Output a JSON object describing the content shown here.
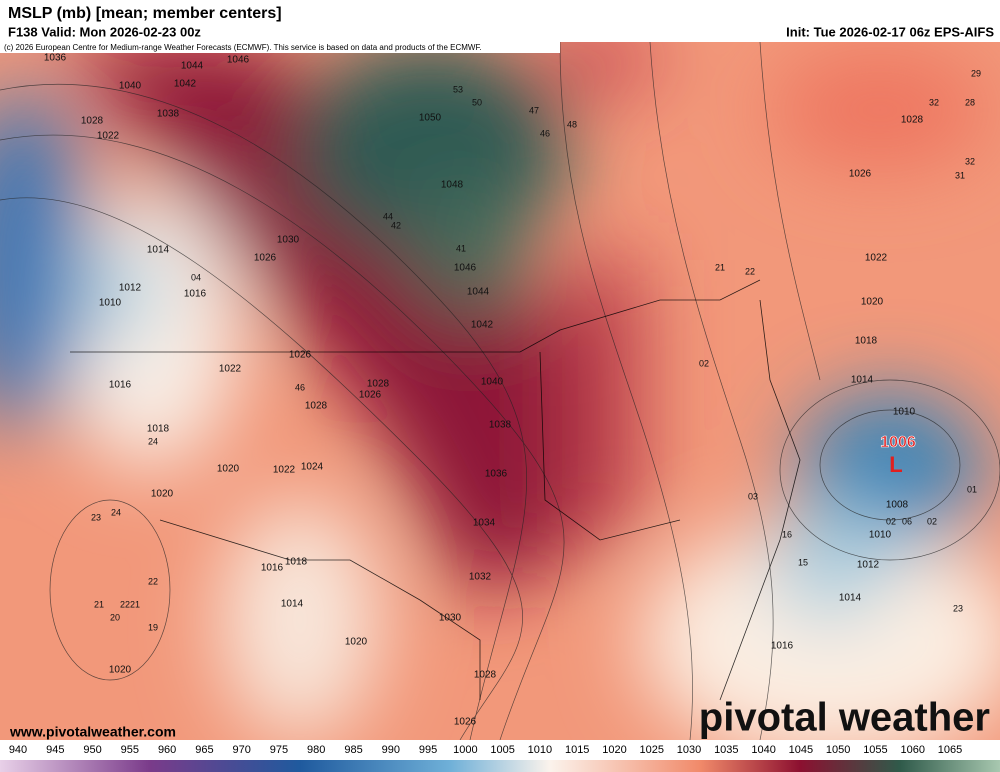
{
  "header": {
    "title": "MSLP (mb) [mean; member centers]",
    "valid": "F138 Valid: Mon 2026-02-23 00z",
    "init": "Init: Tue 2026-02-17 06z EPS-AIFS",
    "copyright": "(c) 2026 European Centre for Medium-range Weather Forecasts (ECMWF). This service is based on data and products of the ECMWF."
  },
  "map": {
    "isobar_labels": [
      "1036",
      "1044",
      "1046",
      "1040",
      "1042",
      "1038",
      "1028",
      "1022",
      "1050",
      "1048",
      "1046",
      "1044",
      "1042",
      "1040",
      "1038",
      "1036",
      "1034",
      "1032",
      "1030",
      "1028",
      "1026",
      "1030",
      "1026",
      "1014",
      "1012",
      "1010",
      "1016",
      "1026",
      "1022",
      "1028",
      "1026",
      "1028",
      "1024",
      "1022",
      "1016",
      "1018",
      "1020",
      "1020",
      "1016",
      "1018",
      "1014",
      "1020",
      "1020",
      "1026",
      "1022",
      "1020",
      "1018",
      "1014",
      "1010",
      "1008",
      "1010",
      "1012",
      "1014",
      "1016",
      "1028"
    ],
    "member_centers": [
      "47",
      "48",
      "46",
      "44",
      "42",
      "41",
      "46",
      "24",
      "23",
      "24",
      "22",
      "21",
      "2221",
      "20",
      "19",
      "21",
      "22",
      "02",
      "03",
      "16",
      "15",
      "29",
      "32",
      "28",
      "32",
      "31",
      "23",
      "01",
      "02",
      "06",
      "02",
      "04",
      "50",
      "53"
    ],
    "low_center": {
      "value": "1006",
      "symbol": "L"
    }
  },
  "colorbar": {
    "ticks": [
      940,
      945,
      950,
      955,
      960,
      965,
      970,
      975,
      980,
      985,
      990,
      995,
      1000,
      1005,
      1010,
      1015,
      1020,
      1025,
      1030,
      1035,
      1040,
      1045,
      1050,
      1055,
      1060,
      1065
    ]
  },
  "footer": {
    "url": "www.pivotalweather.com",
    "brand": "pivotal weather"
  }
}
